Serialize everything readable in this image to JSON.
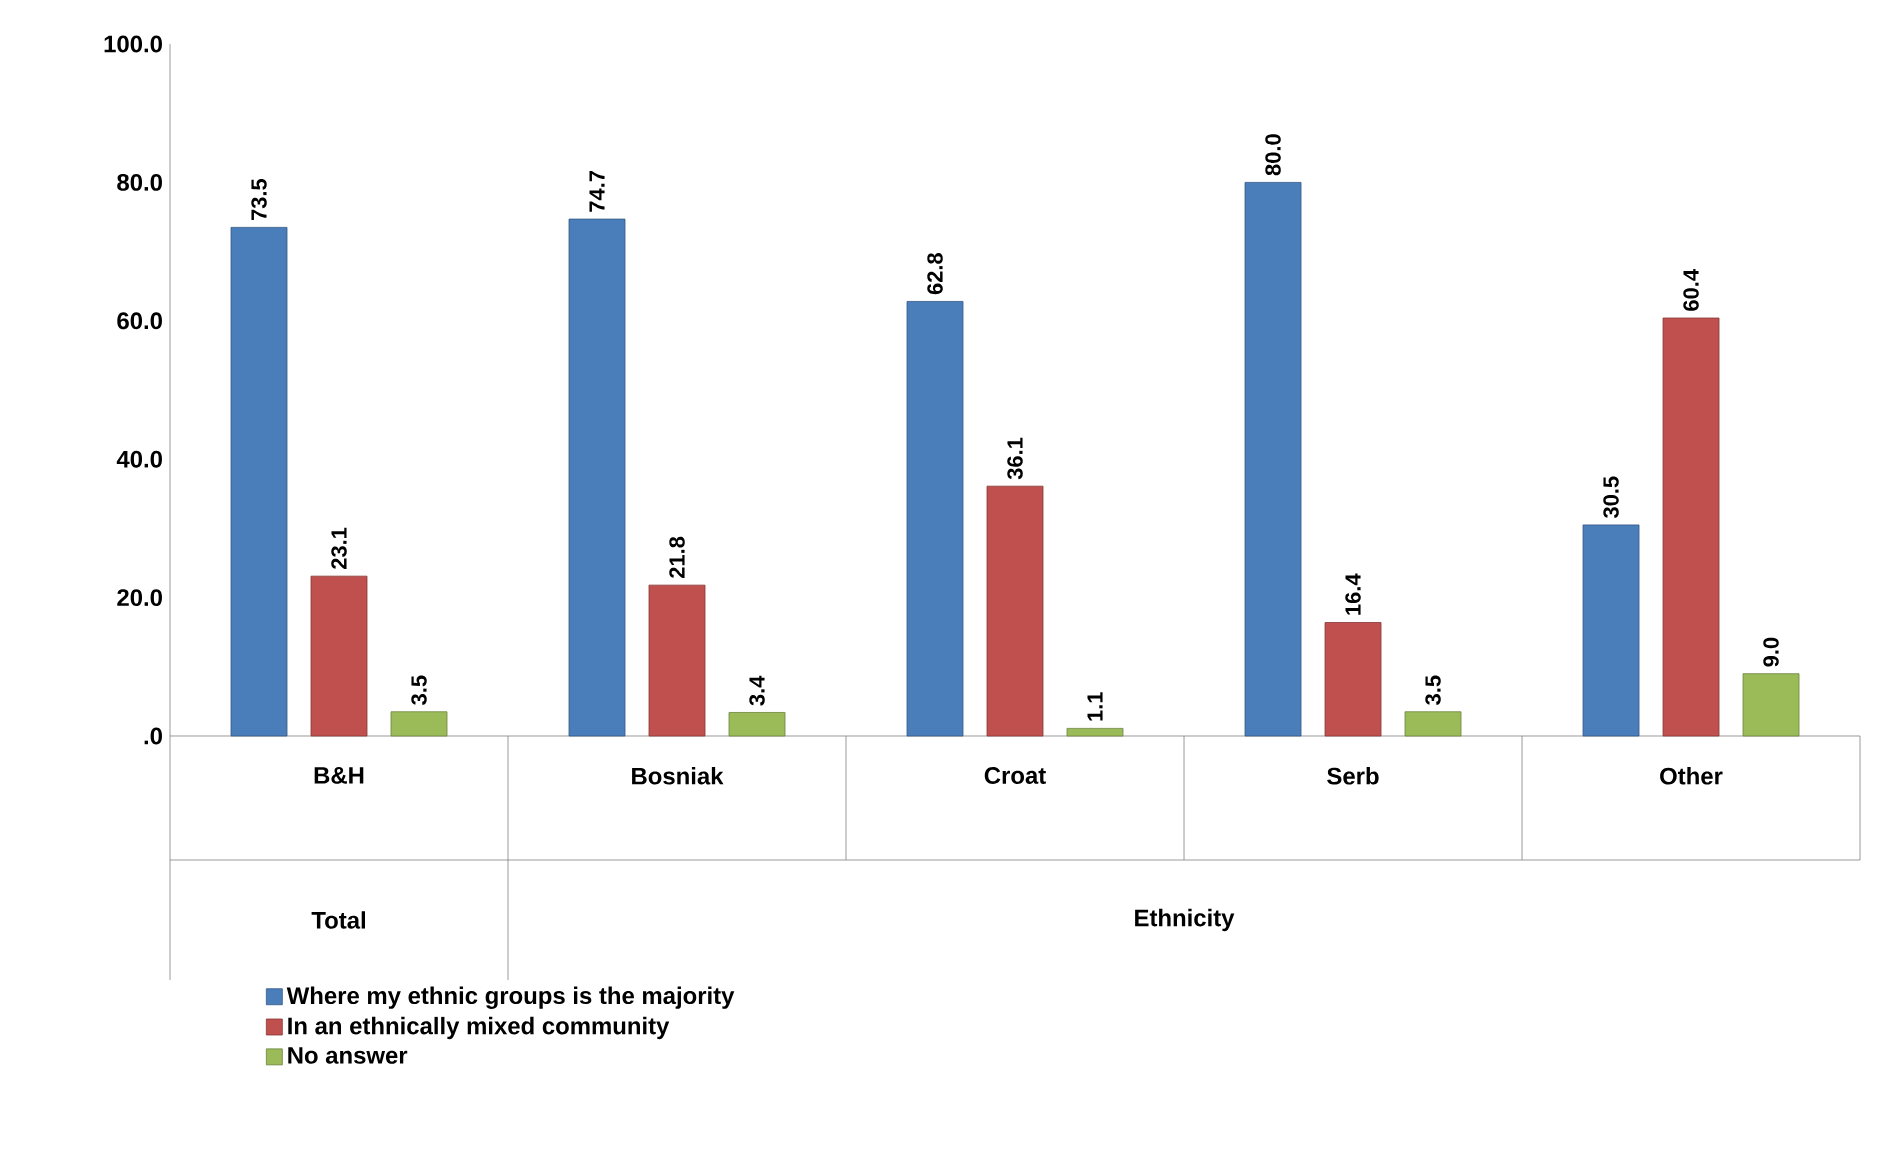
{
  "chart_data": {
    "type": "bar",
    "categories": [
      "B&H",
      "Bosniak",
      "Croat",
      "Serb",
      "Other"
    ],
    "series": [
      {
        "name": "Where my ethnic groups is the majority",
        "color": "#4a7ebb",
        "values": [
          73.5,
          74.7,
          62.8,
          80.0,
          30.5
        ],
        "value_labels": [
          "73.5",
          "74.7",
          "62.8",
          "80.0",
          "30.5"
        ]
      },
      {
        "name": "In an ethnically mixed community",
        "color": "#c0504d",
        "values": [
          23.1,
          21.8,
          36.1,
          16.4,
          60.4
        ],
        "value_labels": [
          "23.1",
          "21.8",
          "36.1",
          "16.4",
          "60.4"
        ]
      },
      {
        "name": "No answer",
        "color": "#9bbb59",
        "values": [
          3.5,
          3.4,
          1.1,
          3.5,
          9.0
        ],
        "value_labels": [
          "3.5",
          "3.4",
          "1.1",
          "3.5",
          "9.0"
        ]
      }
    ],
    "ylim": [
      0,
      100
    ],
    "yticks": [
      {
        "value": 0,
        "label": ".0"
      },
      {
        "value": 20,
        "label": "20.0"
      },
      {
        "value": 40,
        "label": "40.0"
      },
      {
        "value": 60,
        "label": "60.0"
      },
      {
        "value": 80,
        "label": "80.0"
      },
      {
        "value": 100,
        "label": "100.0"
      }
    ],
    "grid": false,
    "legend": "bottom",
    "annotations": [
      "Total",
      "Ethnicity"
    ]
  }
}
